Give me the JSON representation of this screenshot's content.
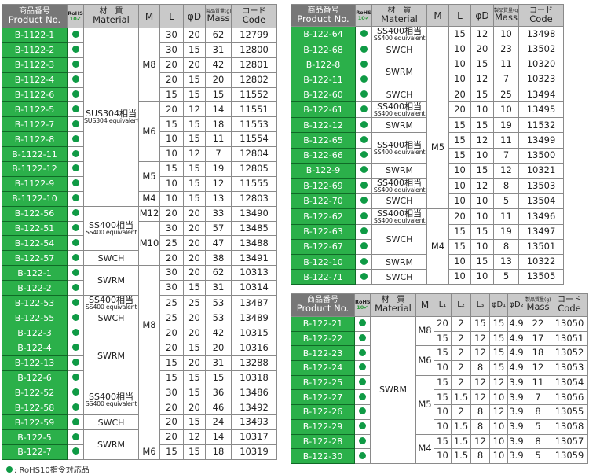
{
  "headers": {
    "product_jp": "商品番号",
    "product_en": "Product No.",
    "rohs_top": "RoHS",
    "rohs_bottom": "10✔",
    "material_jp": "材　質",
    "material_en": "Material",
    "m": "M",
    "l": "L",
    "d": "φD",
    "l1": "L₁",
    "l2": "L₂",
    "l3": "L₃",
    "d1": "φD₁",
    "d2": "φD₂",
    "mass_jp": "製品質量(g)",
    "mass_en": "Mass",
    "code_jp": "コード",
    "code_en": "Code"
  },
  "colors": {
    "product_bg": "#2bb04a",
    "rohs_dot": "#0f9a45",
    "header_bg": "#c9c9c9",
    "product_header_bg": "#777777"
  },
  "footer": {
    "note": ": RoHS10指令対応品"
  },
  "tables": [
    {
      "columns": [
        "l",
        "d"
      ],
      "materials": [
        {
          "jp": "SUS304相当",
          "en": "SUS304 equivalent",
          "rows": 12
        },
        {
          "jp": "SS400相当",
          "en": "SS400 equivalent",
          "rows": 3
        },
        {
          "jp": "SWCH",
          "rows": 1
        },
        {
          "jp": "SWRM",
          "rows": 2
        },
        {
          "jp": "SS400相当",
          "en": "SS400 equivalent",
          "rows": 1
        },
        {
          "jp": "SWCH",
          "rows": 1
        },
        {
          "jp": "SWRM",
          "rows": 4
        },
        {
          "jp": "SS400相当",
          "en": "SS400 equivalent",
          "rows": 2
        },
        {
          "jp": "SWCH",
          "rows": 1
        },
        {
          "jp": "SWRM",
          "rows": 2
        }
      ],
      "m_groups": [
        {
          "label": "M8",
          "rows": 5
        },
        {
          "label": "M6",
          "rows": 4
        },
        {
          "label": "M5",
          "rows": 2
        },
        {
          "label": "M4",
          "rows": 1
        },
        {
          "label": "M12",
          "rows": 1
        },
        {
          "label": "M10",
          "rows": 3
        },
        {
          "label": "M8",
          "rows": 8
        },
        {
          "label": "M6",
          "rows": 5,
          "align": "bottom"
        }
      ],
      "rows": [
        {
          "product": "B-1122-1",
          "vals": [
            "30",
            "20"
          ],
          "mass": "62",
          "code": "12799"
        },
        {
          "product": "B-1122-2",
          "vals": [
            "30",
            "15"
          ],
          "mass": "31",
          "code": "12800"
        },
        {
          "product": "B-1122-3",
          "vals": [
            "20",
            "20"
          ],
          "mass": "42",
          "code": "12801"
        },
        {
          "product": "B-1122-4",
          "vals": [
            "20",
            "15"
          ],
          "mass": "20",
          "code": "12802"
        },
        {
          "product": "B-1122-6",
          "vals": [
            "15",
            "15"
          ],
          "mass": "15",
          "code": "11552"
        },
        {
          "product": "B-1122-5",
          "vals": [
            "20",
            "12"
          ],
          "mass": "14",
          "code": "11551"
        },
        {
          "product": "B-1122-7",
          "vals": [
            "15",
            "15"
          ],
          "mass": "18",
          "code": "11553"
        },
        {
          "product": "B-1122-8",
          "vals": [
            "10",
            "15"
          ],
          "mass": "11",
          "code": "11554"
        },
        {
          "product": "B-1122-11",
          "vals": [
            "10",
            "12"
          ],
          "mass": "7",
          "code": "12804"
        },
        {
          "product": "B-1122-12",
          "vals": [
            "15",
            "15"
          ],
          "mass": "19",
          "code": "12805"
        },
        {
          "product": "B-1122-9",
          "vals": [
            "10",
            "15"
          ],
          "mass": "12",
          "code": "11555"
        },
        {
          "product": "B-1122-10",
          "vals": [
            "10",
            "15"
          ],
          "mass": "13",
          "code": "12803"
        },
        {
          "product": "B-122-56",
          "vals": [
            "20",
            "20"
          ],
          "mass": "33",
          "code": "13490"
        },
        {
          "product": "B-122-51",
          "vals": [
            "30",
            "20"
          ],
          "mass": "57",
          "code": "13485"
        },
        {
          "product": "B-122-54",
          "vals": [
            "25",
            "20"
          ],
          "mass": "47",
          "code": "13488"
        },
        {
          "product": "B-122-57",
          "vals": [
            "20",
            "20"
          ],
          "mass": "38",
          "code": "13491"
        },
        {
          "product": "B-122-1",
          "vals": [
            "30",
            "20"
          ],
          "mass": "62",
          "code": "10313"
        },
        {
          "product": "B-122-2",
          "vals": [
            "30",
            "15"
          ],
          "mass": "31",
          "code": "10314"
        },
        {
          "product": "B-122-53",
          "vals": [
            "25",
            "25"
          ],
          "mass": "53",
          "code": "13487"
        },
        {
          "product": "B-122-55",
          "vals": [
            "25",
            "20"
          ],
          "mass": "53",
          "code": "13489"
        },
        {
          "product": "B-122-3",
          "vals": [
            "20",
            "20"
          ],
          "mass": "42",
          "code": "10315"
        },
        {
          "product": "B-122-4",
          "vals": [
            "20",
            "15"
          ],
          "mass": "20",
          "code": "10316"
        },
        {
          "product": "B-122-13",
          "vals": [
            "15",
            "20"
          ],
          "mass": "31",
          "code": "13288"
        },
        {
          "product": "B-122-6",
          "vals": [
            "15",
            "15"
          ],
          "mass": "15",
          "code": "10318"
        },
        {
          "product": "B-122-52",
          "vals": [
            "30",
            "15"
          ],
          "mass": "36",
          "code": "13486"
        },
        {
          "product": "B-122-58",
          "vals": [
            "20",
            "20"
          ],
          "mass": "46",
          "code": "13492"
        },
        {
          "product": "B-122-59",
          "vals": [
            "20",
            "15"
          ],
          "mass": "24",
          "code": "13493"
        },
        {
          "product": "B-122-5",
          "vals": [
            "20",
            "12"
          ],
          "mass": "14",
          "code": "10317"
        },
        {
          "product": "B-122-7",
          "vals": [
            "15",
            "15"
          ],
          "mass": "18",
          "code": "10319"
        }
      ]
    },
    {
      "columns": [
        "l",
        "d"
      ],
      "materials": [
        {
          "jp": "SS400相当",
          "en": "SS400 equivalent",
          "rows": 1
        },
        {
          "jp": "SWCH",
          "rows": 1
        },
        {
          "jp": "SWRM",
          "rows": 2
        },
        {
          "jp": "SWCH",
          "rows": 1
        },
        {
          "jp": "SS400相当",
          "en": "SS400 equivalent",
          "rows": 1
        },
        {
          "jp": "SWRM",
          "rows": 1
        },
        {
          "jp": "SS400相当",
          "en": "SS400 equivalent",
          "rows": 2
        },
        {
          "jp": "SWRM",
          "rows": 1
        },
        {
          "jp": "SS400相当",
          "en": "SS400 equivalent",
          "rows": 1
        },
        {
          "jp": "SWCH",
          "rows": 1
        },
        {
          "jp": "SS400相当",
          "en": "SS400 equivalent",
          "rows": 1
        },
        {
          "jp": "SWCH",
          "rows": 2
        },
        {
          "jp": "SWRM",
          "rows": 1
        },
        {
          "jp": "SWCH",
          "rows": 1
        }
      ],
      "m_groups": [
        {
          "label": "",
          "rows": 4
        },
        {
          "label": "M5",
          "rows": 8
        },
        {
          "label": "M4",
          "rows": 5
        }
      ],
      "rows": [
        {
          "product": "B-122-64",
          "vals": [
            "15",
            "12"
          ],
          "mass": "10",
          "code": "13498"
        },
        {
          "product": "B-122-68",
          "vals": [
            "10",
            "20"
          ],
          "mass": "23",
          "code": "13502"
        },
        {
          "product": "B-122-8",
          "vals": [
            "10",
            "15"
          ],
          "mass": "11",
          "code": "10320"
        },
        {
          "product": "B-122-11",
          "vals": [
            "10",
            "12"
          ],
          "mass": "7",
          "code": "10323"
        },
        {
          "product": "B-122-60",
          "vals": [
            "20",
            "15"
          ],
          "mass": "25",
          "code": "13494"
        },
        {
          "product": "B-122-61",
          "vals": [
            "20",
            "10"
          ],
          "mass": "10",
          "code": "13495"
        },
        {
          "product": "B-122-12",
          "vals": [
            "15",
            "15"
          ],
          "mass": "19",
          "code": "11532"
        },
        {
          "product": "B-122-65",
          "vals": [
            "15",
            "12"
          ],
          "mass": "11",
          "code": "13499"
        },
        {
          "product": "B-122-66",
          "vals": [
            "15",
            "10"
          ],
          "mass": "7",
          "code": "13500"
        },
        {
          "product": "B-122-9",
          "vals": [
            "10",
            "15"
          ],
          "mass": "12",
          "code": "10321"
        },
        {
          "product": "B-122-69",
          "vals": [
            "10",
            "12"
          ],
          "mass": "8",
          "code": "13503"
        },
        {
          "product": "B-122-70",
          "vals": [
            "10",
            "10"
          ],
          "mass": "5",
          "code": "13504"
        },
        {
          "product": "B-122-62",
          "vals": [
            "20",
            "10"
          ],
          "mass": "11",
          "code": "13496"
        },
        {
          "product": "B-122-63",
          "vals": [
            "15",
            "15"
          ],
          "mass": "19",
          "code": "13497"
        },
        {
          "product": "B-122-67",
          "vals": [
            "15",
            "10"
          ],
          "mass": "8",
          "code": "13501"
        },
        {
          "product": "B-122-10",
          "vals": [
            "10",
            "15"
          ],
          "mass": "13",
          "code": "10322"
        },
        {
          "product": "B-122-71",
          "vals": [
            "10",
            "10"
          ],
          "mass": "5",
          "code": "13505"
        }
      ]
    },
    {
      "columns": [
        "l1",
        "l2",
        "l3",
        "d1",
        "d2"
      ],
      "materials": [
        {
          "jp": "SWRM",
          "rows": 10
        }
      ],
      "m_groups": [
        {
          "label": "M8",
          "rows": 2
        },
        {
          "label": "M6",
          "rows": 2
        },
        {
          "label": "M5",
          "rows": 4
        },
        {
          "label": "M4",
          "rows": 2
        }
      ],
      "rows": [
        {
          "product": "B-122-21",
          "vals": [
            "20",
            "2",
            "15",
            "15",
            "4.9"
          ],
          "mass": "22",
          "code": "13050"
        },
        {
          "product": "B-122-22",
          "vals": [
            "15",
            "2",
            "12",
            "15",
            "4.9"
          ],
          "mass": "17",
          "code": "13051"
        },
        {
          "product": "B-122-23",
          "vals": [
            "15",
            "2",
            "12",
            "15",
            "4.9"
          ],
          "mass": "18",
          "code": "13052"
        },
        {
          "product": "B-122-24",
          "vals": [
            "10",
            "2",
            "8",
            "15",
            "4.9"
          ],
          "mass": "12",
          "code": "13053"
        },
        {
          "product": "B-122-25",
          "vals": [
            "15",
            "2",
            "12",
            "12",
            "3.9"
          ],
          "mass": "11",
          "code": "13054"
        },
        {
          "product": "B-122-27",
          "vals": [
            "15",
            "1.5",
            "12",
            "10",
            "3.9"
          ],
          "mass": "7",
          "code": "13056"
        },
        {
          "product": "B-122-26",
          "vals": [
            "10",
            "2",
            "8",
            "12",
            "3.9"
          ],
          "mass": "8",
          "code": "13055"
        },
        {
          "product": "B-122-29",
          "vals": [
            "10",
            "1.5",
            "8",
            "10",
            "3.9"
          ],
          "mass": "5",
          "code": "13058"
        },
        {
          "product": "B-122-28",
          "vals": [
            "15",
            "1.5",
            "12",
            "10",
            "3.9"
          ],
          "mass": "8",
          "code": "13057"
        },
        {
          "product": "B-122-30",
          "vals": [
            "10",
            "1.5",
            "8",
            "10",
            "3.9"
          ],
          "mass": "5",
          "code": "13059"
        }
      ]
    }
  ]
}
